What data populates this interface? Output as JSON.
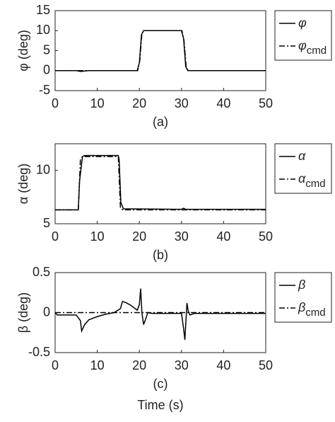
{
  "chart_data": [
    {
      "type": "line",
      "ylabel": "φ (deg)",
      "caption": "(a)",
      "xlim": [
        0,
        50
      ],
      "xticks": [
        0,
        10,
        20,
        30,
        40,
        50
      ],
      "ylim": [
        -5,
        15
      ],
      "yticks": [
        -5,
        0,
        5,
        10,
        15
      ],
      "series": [
        {
          "name": "φ",
          "color": "#000000",
          "dash": "solid",
          "x": [
            0,
            5,
            6,
            8,
            19.5,
            20,
            20.5,
            21,
            29.5,
            30,
            30.5,
            31,
            31.5,
            50
          ],
          "values": [
            0,
            0,
            -0.2,
            0,
            0,
            2,
            9,
            10,
            10,
            10,
            8,
            1,
            0,
            0
          ]
        },
        {
          "name": "φ",
          "subscript": "cmd",
          "color": "#000000",
          "dash": "dashdot",
          "x": [
            0,
            19.6,
            20.1,
            20.6,
            21.1,
            29.6,
            30.1,
            30.6,
            31.1,
            31.6,
            50
          ],
          "values": [
            0,
            0,
            2.5,
            9.3,
            10,
            10,
            10,
            7.5,
            1,
            0,
            0
          ]
        }
      ]
    },
    {
      "type": "line",
      "ylabel": "α (deg)",
      "caption": "(b)",
      "xlim": [
        0,
        50
      ],
      "xticks": [
        0,
        10,
        20,
        30,
        40,
        50
      ],
      "ylim": [
        5,
        12.5
      ],
      "yticks": [
        5,
        10
      ],
      "series": [
        {
          "name": "α",
          "color": "#000000",
          "dash": "solid",
          "x": [
            0,
            5.5,
            5.8,
            6.5,
            7,
            15,
            15.2,
            15.6,
            16.2,
            30,
            30.5,
            31,
            50
          ],
          "values": [
            6.3,
            6.3,
            9,
            11.3,
            11.4,
            11.4,
            11,
            7,
            6.4,
            6.35,
            6.45,
            6.35,
            6.35
          ]
        },
        {
          "name": "α",
          "subscript": "cmd",
          "color": "#000000",
          "dash": "dashdot",
          "x": [
            0,
            5.5,
            6,
            6.5,
            15,
            15.5,
            16,
            50
          ],
          "values": [
            6.3,
            6.3,
            11,
            11.3,
            11.3,
            6.5,
            6.3,
            6.3
          ]
        }
      ]
    },
    {
      "type": "line",
      "ylabel": "β (deg)",
      "caption": "(c)",
      "xlabel": "Time (s)",
      "xlim": [
        0,
        50
      ],
      "xticks": [
        0,
        10,
        20,
        30,
        40,
        50
      ],
      "ylim": [
        -0.5,
        0.5
      ],
      "yticks": [
        -0.5,
        0,
        0.5
      ],
      "series": [
        {
          "name": "β",
          "color": "#000000",
          "dash": "solid",
          "x": [
            0,
            0.5,
            5,
            6,
            6.3,
            7,
            8,
            10,
            12,
            14,
            15.5,
            16,
            17,
            18,
            19,
            19.5,
            20,
            20.3,
            20.6,
            21,
            21.5,
            22,
            23,
            29,
            30,
            30.5,
            30.8,
            31,
            31.3,
            31.6,
            32,
            33,
            50
          ],
          "values": [
            0,
            -0.03,
            -0.03,
            -0.1,
            -0.23,
            -0.15,
            -0.09,
            -0.05,
            -0.02,
            0,
            0.05,
            0.14,
            0.12,
            0.09,
            0.05,
            0.03,
            0.1,
            0.3,
            0,
            -0.15,
            -0.08,
            0,
            -0.01,
            -0.01,
            -0.01,
            -0.2,
            -0.34,
            -0.15,
            0.12,
            0.02,
            -0.03,
            -0.01,
            -0.01
          ]
        },
        {
          "name": "β",
          "subscript": "cmd",
          "color": "#000000",
          "dash": "dashdot",
          "x": [
            0,
            50
          ],
          "values": [
            0,
            0
          ]
        }
      ]
    }
  ]
}
